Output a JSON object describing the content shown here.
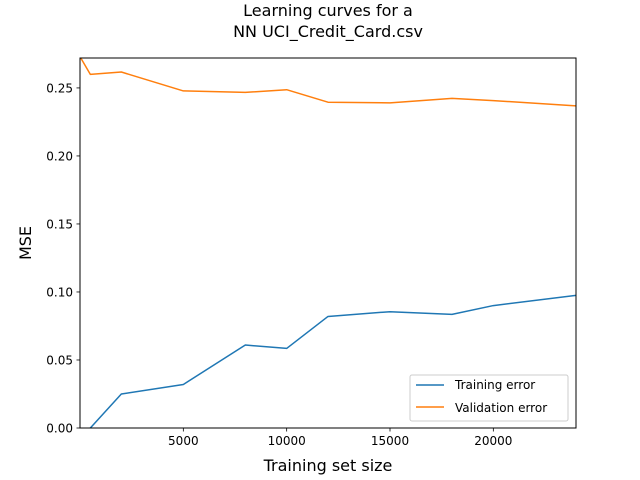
{
  "chart_data": {
    "type": "line",
    "title": [
      "Learning curves for a",
      "NN UCI_Credit_Card.csv"
    ],
    "xlabel": "Training set size",
    "ylabel": "MSE",
    "xlim": [
      0,
      24000
    ],
    "ylim": [
      0,
      0.272
    ],
    "xticks": [
      5000,
      10000,
      15000,
      20000
    ],
    "xtick_labels": [
      "5000",
      "10000",
      "15000",
      "20000"
    ],
    "yticks": [
      0,
      0.05,
      0.1,
      0.15,
      0.2,
      0.25
    ],
    "ytick_labels": [
      "0.00",
      "0.05",
      "0.10",
      "0.15",
      "0.20",
      "0.25"
    ],
    "grid": false,
    "legend_position": "lower-right",
    "series": [
      {
        "name": "Training error",
        "color": "#1f77b4",
        "x": [
          0,
          500,
          2000,
          5000,
          8000,
          10000,
          12000,
          15000,
          18000,
          20000,
          24000
        ],
        "y": [
          -0.003,
          0.0,
          0.025,
          0.032,
          0.061,
          0.0585,
          0.082,
          0.0855,
          0.0835,
          0.09,
          0.0975
        ]
      },
      {
        "name": "Validation error",
        "color": "#ff7f0e",
        "x": [
          0,
          500,
          2000,
          5000,
          8000,
          10000,
          12000,
          15000,
          18000,
          20000,
          24000
        ],
        "y": [
          0.273,
          0.26,
          0.2617,
          0.2478,
          0.2467,
          0.2487,
          0.2395,
          0.239,
          0.2423,
          0.2407,
          0.2368
        ]
      }
    ]
  }
}
